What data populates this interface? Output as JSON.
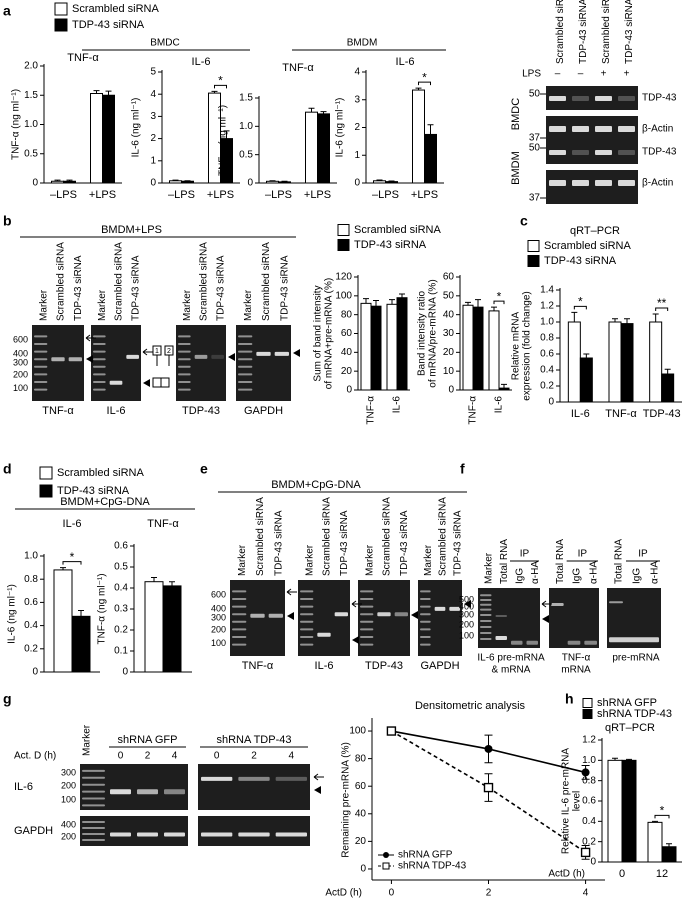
{
  "chart_data": [
    {
      "type": "bar",
      "title": "TNF-α",
      "ylabel": [
        "TNF-α (ng ml⁻¹)"
      ],
      "categories": [
        "–LPS",
        "+LPS"
      ],
      "series": [
        {
          "name": "Scrambled siRNA",
          "color": "#ffffff",
          "values": [
            0.03,
            1.53
          ],
          "errors": [
            0.02,
            0.05
          ]
        },
        {
          "name": "TDP-43 siRNA",
          "color": "#000000",
          "values": [
            0.03,
            1.5
          ],
          "errors": [
            0.02,
            0.07
          ]
        }
      ],
      "ylim": [
        0,
        2
      ],
      "yticks": [
        0,
        0.5,
        {
          "value": 1,
          "label": "1.0"
        },
        1.5,
        {
          "value": 2,
          "label": "2.0"
        }
      ]
    },
    {
      "type": "bar",
      "title": "IL-6",
      "ylabel": [
        "IL-6 (ng ml⁻¹)"
      ],
      "categories": [
        "–LPS",
        "+LPS"
      ],
      "series": [
        {
          "color": "#ffffff",
          "values": [
            0.1,
            4.05
          ],
          "errors": [
            0.03,
            0.08
          ]
        },
        {
          "color": "#000000",
          "values": [
            0.08,
            2.0
          ],
          "errors": [
            0.02,
            0.35
          ]
        }
      ],
      "ylim": [
        0,
        5
      ],
      "yticks": [
        0,
        1,
        2,
        3,
        4,
        5
      ],
      "annotations": [
        "*"
      ]
    },
    {
      "type": "bar",
      "title": "TNF-α",
      "ylabel": [
        "TNF-α (ng ml⁻¹)"
      ],
      "categories": [
        "–LPS",
        "+LPS"
      ],
      "series": [
        {
          "color": "#ffffff",
          "values": [
            0.03,
            1.25
          ],
          "errors": [
            0.01,
            0.07
          ]
        },
        {
          "color": "#000000",
          "values": [
            0.02,
            1.22
          ],
          "errors": [
            0.01,
            0.04
          ]
        }
      ],
      "ylim": [
        0,
        1.5
      ],
      "yticks": [
        0,
        0.5,
        {
          "value": 1,
          "label": "1.0"
        },
        1.5
      ]
    },
    {
      "type": "bar",
      "title": "IL-6",
      "ylabel": [
        "IL-6 (ng ml⁻¹)"
      ],
      "categories": [
        "–LPS",
        "+LPS"
      ],
      "series": [
        {
          "color": "#ffffff",
          "values": [
            0.08,
            3.35
          ],
          "errors": [
            0.03,
            0.07
          ]
        },
        {
          "color": "#000000",
          "values": [
            0.05,
            1.75
          ],
          "errors": [
            0.02,
            0.35
          ]
        }
      ],
      "ylim": [
        0,
        4
      ],
      "yticks": [
        0,
        1,
        2,
        3,
        4
      ],
      "annotations": [
        "*"
      ]
    },
    {
      "type": "bar",
      "ylabel": [
        "Sum of band intensity",
        "of mRNA+pre-mRNA (%)"
      ],
      "categories": [
        "TNF-α",
        "IL-6"
      ],
      "series": [
        {
          "name": "Scrambled siRNA",
          "color": "#ffffff",
          "values": [
            92,
            91
          ],
          "errors": [
            5,
            5
          ]
        },
        {
          "name": "TDP-43 siRNA",
          "color": "#000000",
          "values": [
            89,
            98
          ],
          "errors": [
            6,
            4
          ]
        }
      ],
      "ylim": [
        0,
        120
      ],
      "yticks": [
        0,
        20,
        40,
        60,
        80,
        100,
        120
      ]
    },
    {
      "type": "bar",
      "ylabel": [
        "Band intensity ratio",
        "of mRNA/pre-mRNA (%)"
      ],
      "categories": [
        "TNF-α",
        "IL-6"
      ],
      "series": [
        {
          "color": "#ffffff",
          "values": [
            45,
            42
          ],
          "errors": [
            1.5,
            2
          ]
        },
        {
          "color": "#000000",
          "values": [
            44,
            1
          ],
          "errors": [
            4,
            2
          ]
        }
      ],
      "ylim": [
        0,
        60
      ],
      "yticks": [
        0,
        10,
        20,
        30,
        40,
        50,
        60
      ],
      "annotations": [
        "*"
      ]
    },
    {
      "type": "bar",
      "subtitle": "qRT–PCR",
      "ylabel": [
        "Relative mRNA",
        "expression (fold change)"
      ],
      "categories": [
        "IL-6",
        "TNF-α",
        "TDP-43"
      ],
      "series": [
        {
          "name": "Scrambled siRNA",
          "color": "#ffffff",
          "values": [
            1,
            1,
            1
          ],
          "errors": [
            0.12,
            0.04,
            0.1
          ]
        },
        {
          "name": "TDP-43 siRNA",
          "color": "#000000",
          "values": [
            0.55,
            0.98,
            0.35
          ],
          "errors": [
            0.05,
            0.06,
            0.06
          ]
        }
      ],
      "ylim": [
        0,
        1.4
      ],
      "yticks": [
        0,
        0.2,
        0.4,
        0.6,
        0.8,
        {
          "value": 1,
          "label": "1.0"
        },
        1.2,
        1.4
      ],
      "annotations": [
        "*",
        "**"
      ]
    },
    {
      "type": "bar",
      "title": "IL-6",
      "ylabel": [
        "IL-6 (ng ml⁻¹)"
      ],
      "categories": [
        null
      ],
      "series": [
        {
          "name": "Scrambled siRNA",
          "color": "#ffffff",
          "values": [
            0.88
          ],
          "errors": [
            0.02
          ]
        },
        {
          "name": "TDP-43 siRNA",
          "color": "#000000",
          "values": [
            0.48
          ],
          "errors": [
            0.05
          ]
        }
      ],
      "ylim": [
        0,
        1
      ],
      "yticks": [
        0,
        0.2,
        0.4,
        0.6,
        0.8,
        {
          "value": 1,
          "label": "1.0"
        }
      ],
      "annotations": [
        "*"
      ]
    },
    {
      "type": "bar",
      "title": "TNF-α",
      "ylabel": [
        "TNF-α (ng ml⁻¹)"
      ],
      "categories": [
        null
      ],
      "series": [
        {
          "color": "#ffffff",
          "values": [
            0.43
          ],
          "errors": [
            0.02
          ]
        },
        {
          "color": "#000000",
          "values": [
            0.41
          ],
          "errors": [
            0.02
          ]
        }
      ],
      "ylim": [
        0,
        0.6
      ],
      "yticks": [
        0,
        0.1,
        0.2,
        0.3,
        0.4,
        0.5,
        0.6
      ]
    },
    {
      "type": "line",
      "title": "Densitometric analysis",
      "xlabel": "ActD (h)",
      "ylabel": [
        "Remaining pre-mRNA (%)"
      ],
      "x": [
        0,
        2,
        4
      ],
      "xlim": [
        -0.4,
        4.4
      ],
      "xticks": [
        0,
        2,
        4
      ],
      "ylim": [
        -8,
        108
      ],
      "yticks": [
        0,
        20,
        40,
        60,
        80,
        100
      ],
      "series": [
        {
          "name": "shRNA GFP",
          "color": "#000000",
          "marker": "circle",
          "linestyle": "solid",
          "values": [
            100,
            87,
            70
          ],
          "errors": [
            0,
            10,
            5
          ]
        },
        {
          "name": "shRNA TDP-43",
          "color": "#000000",
          "marker": "square",
          "linestyle": "dashed",
          "values": [
            100,
            59,
            12
          ],
          "errors": [
            0,
            10,
            5
          ]
        }
      ]
    },
    {
      "type": "bar",
      "title": "qRT–PCR",
      "xlabel": "ActD (h)",
      "ylabel": [
        "Relative IL-6 pre-mRNA",
        "level"
      ],
      "categories": [
        "0",
        "12"
      ],
      "series": [
        {
          "name": "shRNA GFP",
          "color": "#ffffff",
          "values": [
            1.0,
            0.39
          ],
          "errors": [
            0.02,
            0.01
          ]
        },
        {
          "name": "shRNA TDP-43",
          "color": "#000000",
          "values": [
            1.0,
            0.15
          ],
          "errors": [
            0.01,
            0.03
          ]
        }
      ],
      "ylim": [
        0,
        1.2
      ],
      "yticks": [
        0,
        0.2,
        0.4,
        0.6,
        0.8,
        {
          "value": 1,
          "label": "1.0"
        },
        1.2
      ],
      "annotations": [
        "*"
      ]
    }
  ],
  "panel_labels": [
    "a",
    "b",
    "c",
    "d",
    "e",
    "f",
    "g",
    "h"
  ],
  "a_groups": [
    "BMDC",
    "BMDM"
  ],
  "d_header": "BMDM+CpG-DNA",
  "blot_a": {
    "lanes": [
      "Scrambled siRNA",
      "TDP-43 siRNA",
      "Scrambled siRNA",
      "TDP-43 siRNA"
    ],
    "lps_label": "LPS",
    "lps": [
      "–",
      "–",
      "+",
      "+"
    ],
    "rows": [
      {
        "cell": "BMDC",
        "markers": [
          "50",
          "37"
        ],
        "proteins": [
          "TDP-43",
          "β-Actin"
        ]
      },
      {
        "cell": "BMDM",
        "markers": [
          "50",
          "37"
        ],
        "proteins": [
          "TDP-43",
          "β-Actin"
        ]
      }
    ]
  },
  "gels_b": {
    "header": "BMDM+LPS",
    "ladder": [
      "600",
      "400",
      "300",
      "200",
      "100"
    ],
    "exon_labels": [
      "1",
      "2"
    ],
    "gels": [
      {
        "lanes": [
          "Marker",
          "Scrambled siRNA",
          "TDP-43 siRNA"
        ],
        "caption": "TNF-α"
      },
      {
        "lanes": [
          "Marker",
          "Scrambled siRNA",
          "TDP-43 siRNA"
        ],
        "caption": "IL-6"
      },
      {
        "lanes": [
          "Marker",
          "Scrambled siRNA",
          "TDP-43 siRNA"
        ],
        "caption": "TDP-43"
      },
      {
        "lanes": [
          "Marker",
          "Scrambled siRNA",
          "TDP-43 siRNA"
        ],
        "caption": "GAPDH"
      }
    ]
  },
  "gels_e": {
    "header": "BMDM+CpG-DNA",
    "ladder": [
      "600",
      "400",
      "300",
      "200",
      "100"
    ],
    "gels": [
      {
        "lanes": [
          "Marker",
          "Scrambled siRNA",
          "TDP-43 siRNA"
        ],
        "caption": "TNF-α"
      },
      {
        "lanes": [
          "Marker",
          "Scrambled siRNA",
          "TDP-43 siRNA"
        ],
        "caption": "IL-6"
      },
      {
        "lanes": [
          "Marker",
          "Scrambled siRNA",
          "TDP-43 siRNA"
        ],
        "caption": "TDP-43"
      },
      {
        "lanes": [
          "Marker",
          "Scrambled siRNA",
          "TDP-43 siRNA"
        ],
        "caption": "GAPDH"
      }
    ]
  },
  "gels_f": {
    "ladder": [
      "500",
      "400",
      "300",
      "200",
      "100"
    ],
    "gels": [
      {
        "lanes": [
          "Marker",
          "Total RNA"
        ],
        "ip": "IP",
        "ip_lanes": [
          "IgG",
          "α-HA"
        ],
        "caption": [
          "IL-6 pre-mRNA",
          "& mRNA"
        ]
      },
      {
        "lanes": [
          "Total RNA"
        ],
        "ip": "IP",
        "ip_lanes": [
          "IgG",
          "α-HA"
        ],
        "caption": [
          "TNF-α",
          "mRNA"
        ]
      },
      {
        "lanes": [
          "Total RNA"
        ],
        "ip": "IP",
        "ip_lanes": [
          "IgG",
          "α-HA"
        ],
        "caption": [
          "pre-mRNA"
        ]
      }
    ]
  },
  "gels_g": {
    "marker": "Marker",
    "actd": "Act. D (h)",
    "groups": [
      {
        "name": "shRNA GFP",
        "times": [
          "0",
          "2",
          "4"
        ]
      },
      {
        "name": "shRNA TDP-43",
        "times": [
          "0",
          "2",
          "4"
        ]
      }
    ],
    "rows": [
      {
        "name": "IL-6",
        "ladder": [
          "300",
          "200",
          "100"
        ]
      },
      {
        "name": "GAPDH",
        "ladder": [
          "400",
          "200"
        ]
      }
    ]
  }
}
